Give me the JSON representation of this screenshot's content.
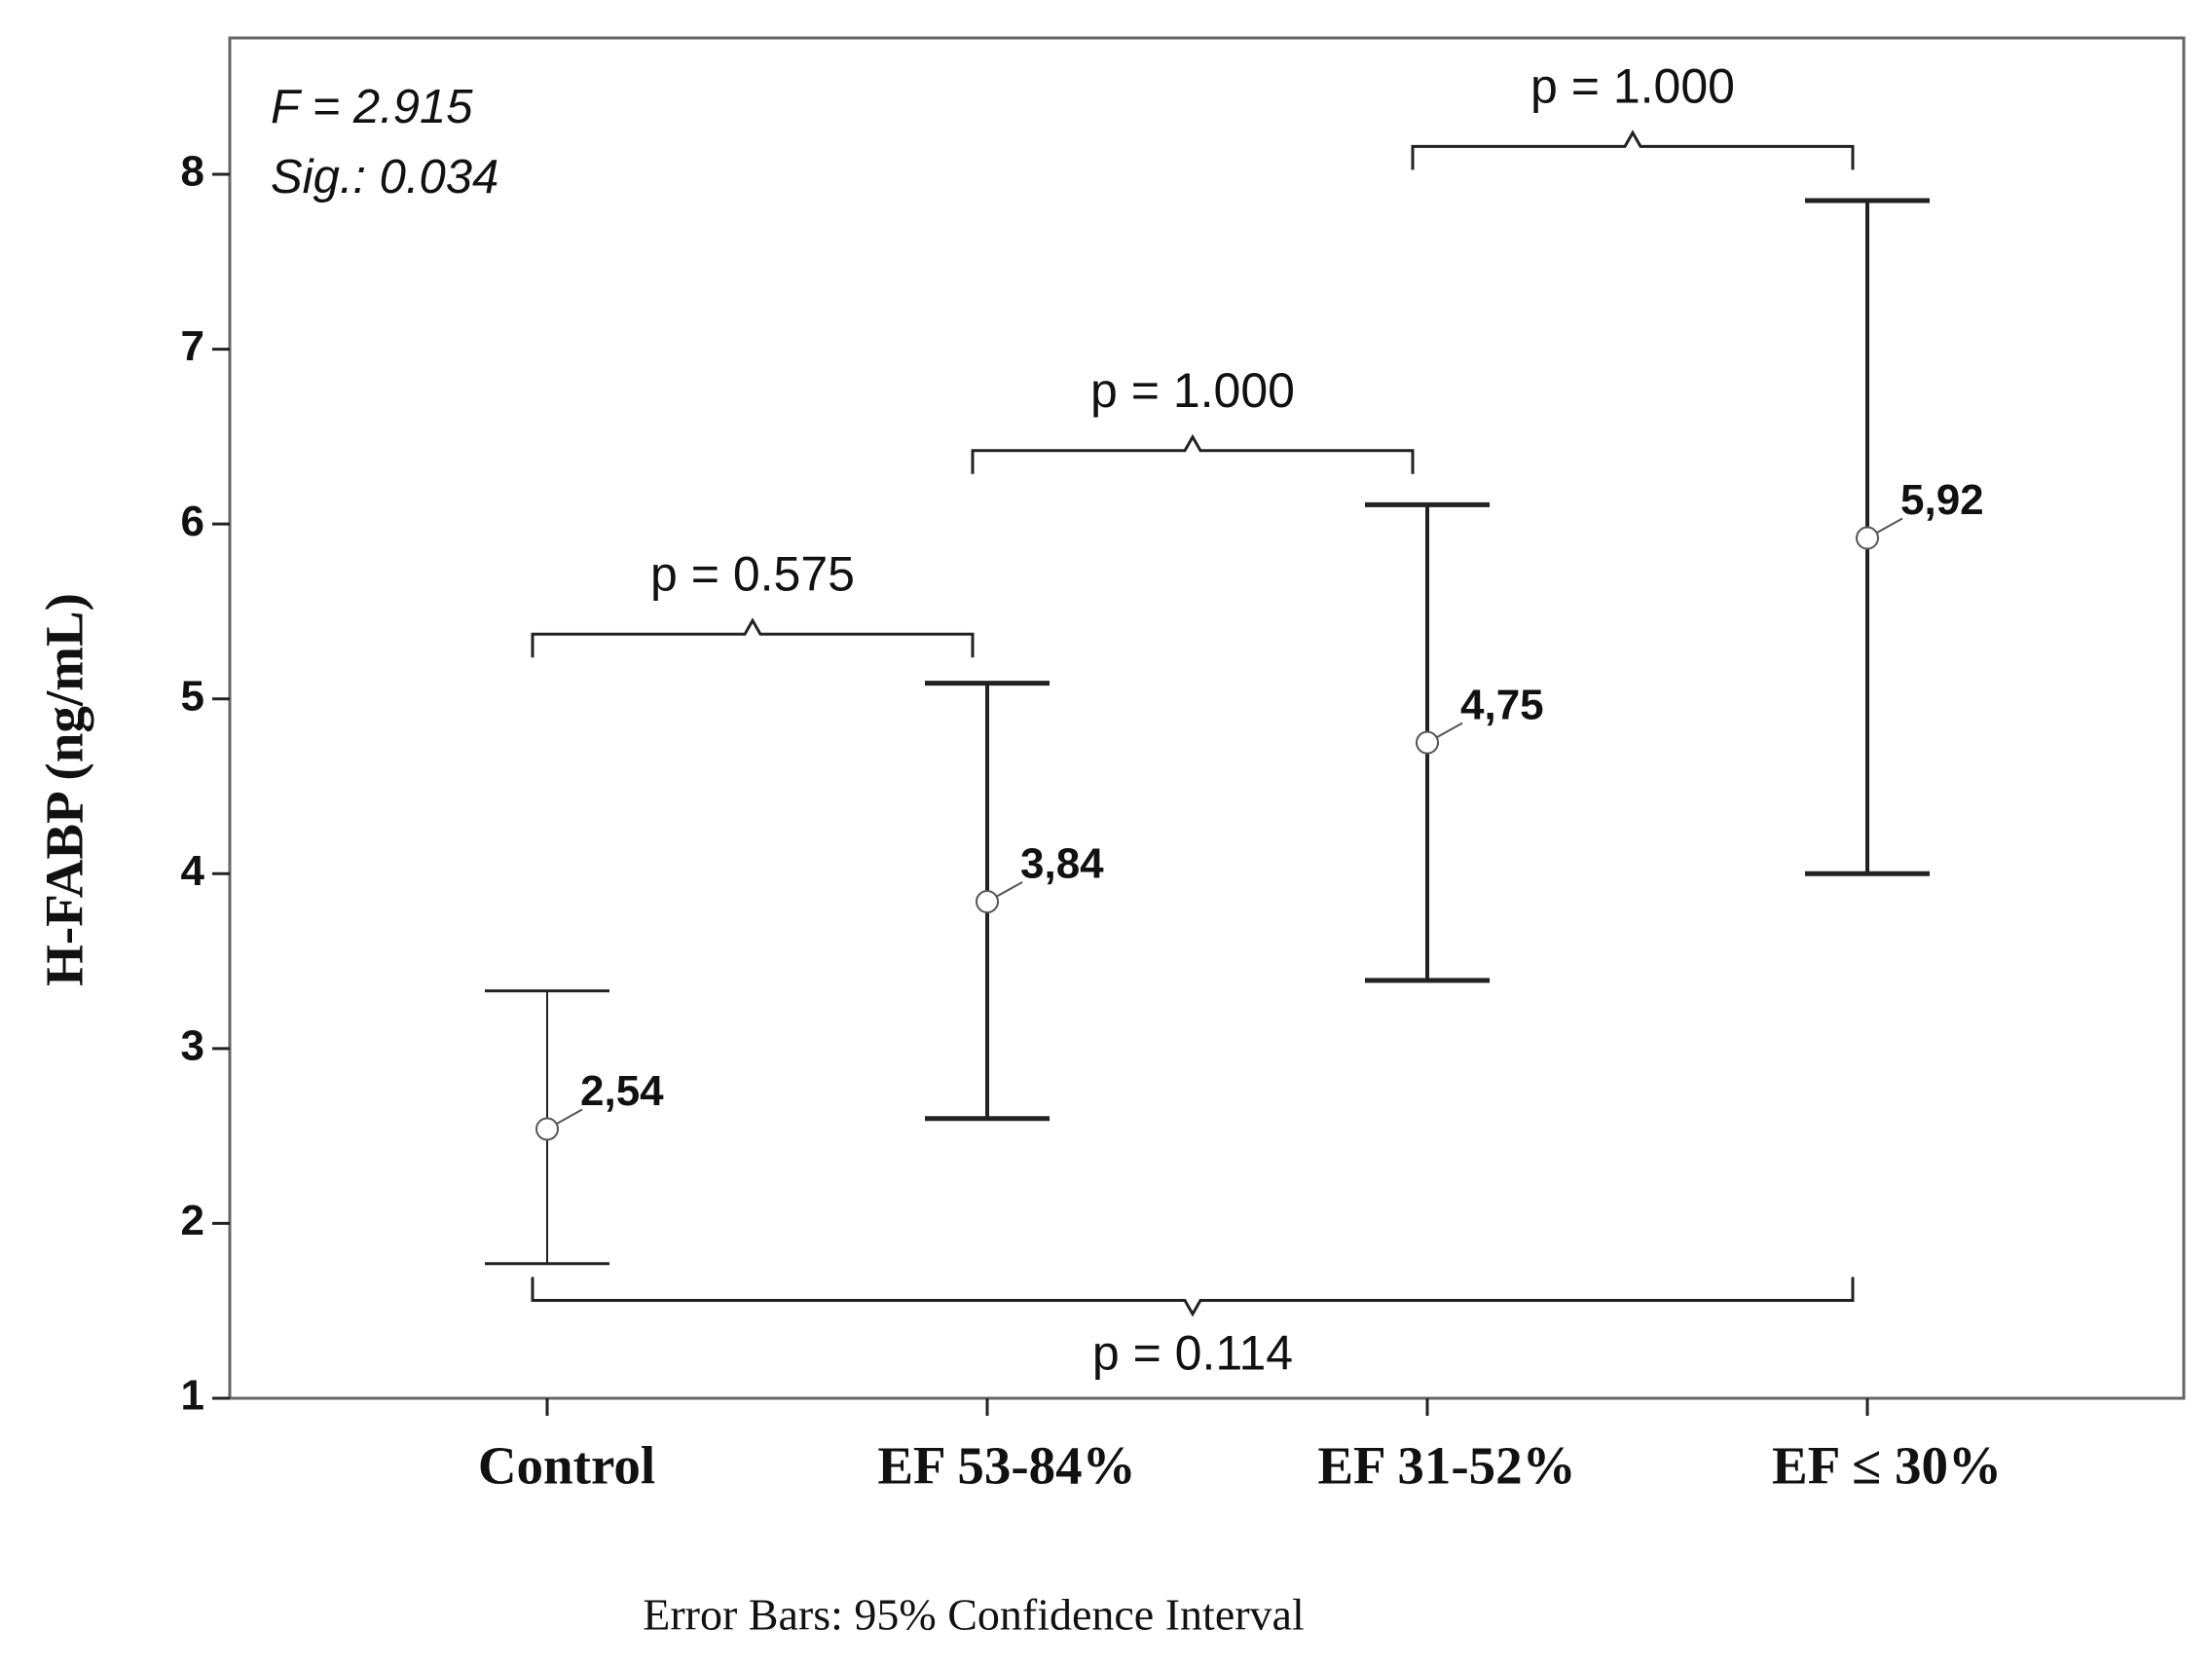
{
  "chart_data": {
    "type": "errorbar",
    "y_label": "H-FABP (ng/mL)",
    "footnote": "Error Bars: 95% Confidence Interval",
    "annotations": [
      "F = 2.915",
      "Sig.: 0.034"
    ],
    "categories": [
      "Control",
      "EF 53-84%",
      "EF 31-52%",
      "EF ≤ 30%"
    ],
    "values": [
      2.54,
      3.84,
      4.75,
      5.92
    ],
    "value_labels": [
      "2,54",
      "3,84",
      "4,75",
      "5,92"
    ],
    "ci_low": [
      1.77,
      2.6,
      3.39,
      4.0
    ],
    "ci_high": [
      3.33,
      5.09,
      6.11,
      7.85
    ],
    "color": "#222222",
    "ylim": [
      1,
      8.78
    ],
    "yticks": [
      1,
      2,
      3,
      4,
      5,
      6,
      7,
      8
    ],
    "comparisons": [
      {
        "groups": [
          0,
          1
        ],
        "level": 5.37,
        "label": "p = 0.575",
        "label_side": "above"
      },
      {
        "groups": [
          1,
          2
        ],
        "level": 6.42,
        "label": "p = 1.000",
        "label_side": "above"
      },
      {
        "groups": [
          2,
          3
        ],
        "level": 8.16,
        "label": "p = 1.000",
        "label_side": "above"
      },
      {
        "groups": [
          0,
          3
        ],
        "level": 1.56,
        "label": "p = 0.114",
        "label_side": "below"
      }
    ]
  }
}
